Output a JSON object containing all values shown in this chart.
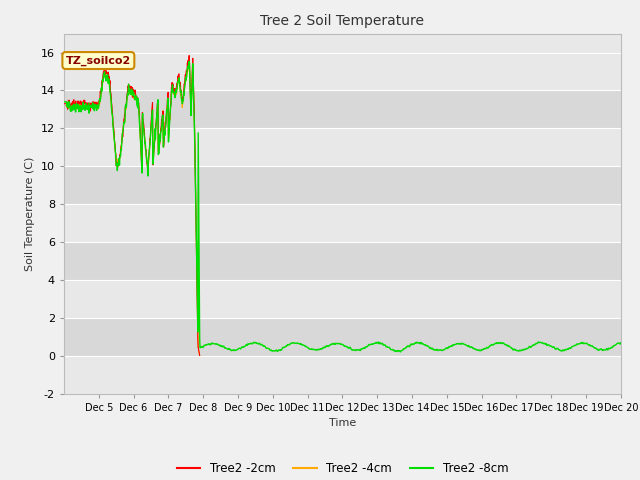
{
  "title": "Tree 2 Soil Temperature",
  "xlabel": "Time",
  "ylabel": "Soil Temperature (C)",
  "ylim": [
    -2,
    17
  ],
  "yticks": [
    -2,
    0,
    2,
    4,
    6,
    8,
    10,
    12,
    14,
    16
  ],
  "outer_bg": "#f0f0f0",
  "plot_bg_colors": [
    "#e8e8e8",
    "#d8d8d8"
  ],
  "grid_color": "white",
  "annotation_text": "TZ_soilco2",
  "annotation_bg": "#ffffcc",
  "annotation_border": "#cc8800",
  "annotation_text_color": "#880000",
  "legend_entries": [
    "Tree2 -2cm",
    "Tree2 -4cm",
    "Tree2 -8cm"
  ],
  "line_colors": [
    "#ff0000",
    "#ffaa00",
    "#00dd00"
  ],
  "xtick_labels": [
    "Dec 5",
    "Dec 6",
    "Dec 7",
    "Dec 8",
    "Dec 9",
    "Dec 10",
    "Dec 11",
    "Dec 12",
    "Dec 13",
    "Dec 14",
    "Dec 15",
    "Dec 16",
    "Dec 17",
    "Dec 18",
    "Dec 19",
    "Dec 20"
  ]
}
